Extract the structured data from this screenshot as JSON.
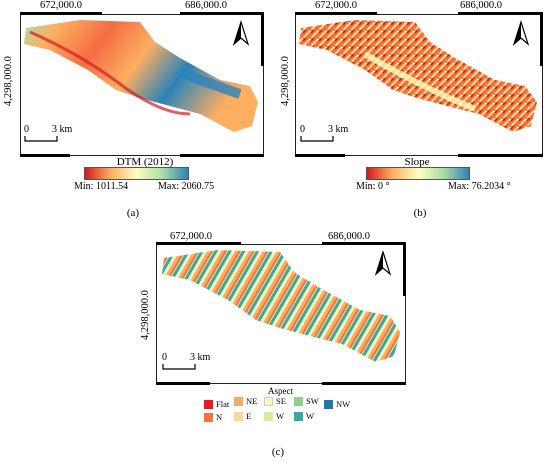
{
  "panels": {
    "a": {
      "x_ticks": [
        "672,000.0",
        "686,000.0"
      ],
      "y_tick": "4,298,000.0",
      "scale_zero": "0",
      "scale_label": "3 km",
      "legend_title": "DTM (2012)",
      "legend_min": "Min: 1011.54",
      "legend_max": "Max: 2060.75",
      "caption": "(a)"
    },
    "b": {
      "x_ticks": [
        "672,000.0",
        "686,000.0"
      ],
      "y_tick": "4,298,000.0",
      "scale_zero": "0",
      "scale_label": "3 km",
      "legend_title": "Slope",
      "legend_min": "Min: 0 °",
      "legend_max": "Max: 76.2034 °",
      "caption": "(b)"
    },
    "c": {
      "x_ticks": [
        "672,000.0",
        "686,000.0"
      ],
      "y_tick": "4,298,000.0",
      "scale_zero": "0",
      "scale_label": "3 km",
      "legend_title": "Aspect",
      "classes": [
        {
          "label": "Flat",
          "color": "#e41a1c"
        },
        {
          "label": "N",
          "color": "#f4733f"
        },
        {
          "label": "NE",
          "color": "#f6ab6b"
        },
        {
          "label": "E",
          "color": "#f8d79b"
        },
        {
          "label": "SE",
          "color": "#fbf5b8"
        },
        {
          "label": "W",
          "color": "#d4ec9e"
        },
        {
          "label": "SW",
          "color": "#91d08c"
        },
        {
          "label": "W",
          "color": "#3aa8a0"
        },
        {
          "label": "NW",
          "color": "#1f78a8"
        }
      ],
      "caption": "(c)"
    }
  },
  "colors": {
    "dtm_ramp": [
      "#d7191c",
      "#fdae61",
      "#ffffbf",
      "#abdda4",
      "#2b83ba"
    ],
    "slope_ramp": [
      "#d7191c",
      "#fdae61",
      "#ffffbf",
      "#abdda4",
      "#2b83ba"
    ]
  },
  "icons": [
    "north-arrow-icon"
  ]
}
